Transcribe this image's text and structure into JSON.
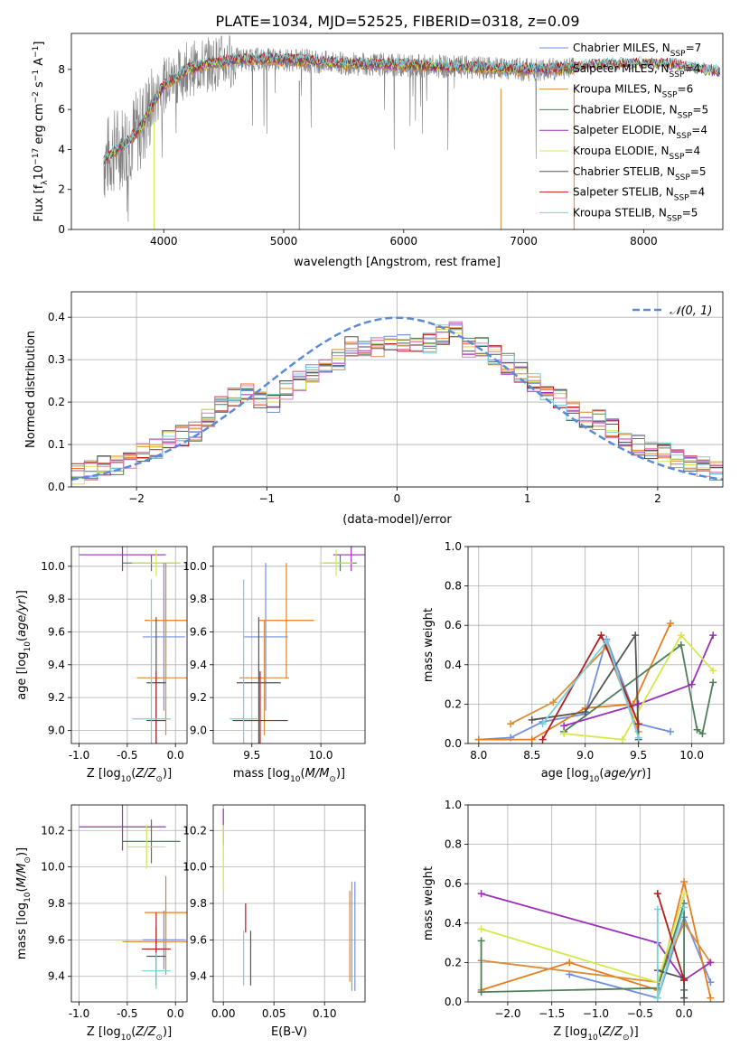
{
  "figure": {
    "title": "PLATE=1034, MJD=52525, FIBERID=0318, z=0.09"
  },
  "colors": {
    "Chabrier MILES": "#6f8fdf",
    "Salpeter MILES": "#e87d1e",
    "Kroupa MILES": "#d98e3a",
    "Chabrier ELODIE": "#4e7f5a",
    "Salpeter ELODIE": "#9b30b8",
    "Kroupa ELODIE": "#d4e84a",
    "Chabrier STELIB": "#555555",
    "Salpeter STELIB": "#b51c1c",
    "Kroupa STELIB": "#78d0dc",
    "gauss": "#5b8bd6",
    "data": "#7f7f7f",
    "pink": "#e07bb0"
  },
  "chart_data": [
    {
      "id": "spectrum",
      "type": "line",
      "xlabel": "wavelength [Angstrom, rest frame]",
      "ylabel": "Flux [f_λ 10^-17 erg cm^-2 s^-1 A^-1]",
      "xlim": [
        3230,
        8660
      ],
      "ylim": [
        0,
        9.8
      ],
      "xticks": [
        4000,
        5000,
        6000,
        7000,
        8000
      ],
      "yticks": [
        0,
        2,
        4,
        6,
        8
      ],
      "legend_position": "top-right",
      "legend": [
        "Chabrier MILES, N_SSP=7",
        "Salpeter MILES, N_SSP=4",
        "Kroupa MILES, N_SSP=6",
        "Chabrier ELODIE, N_SSP=5",
        "Salpeter ELODIE, N_SSP=4",
        "Kroupa ELODIE, N_SSP=4",
        "Chabrier STELIB, N_SSP=5",
        "Salpeter STELIB, N_SSP=4",
        "Kroupa STELIB, N_SSP=5"
      ],
      "continuum": {
        "x": [
          3500,
          3600,
          3700,
          3800,
          3900,
          4000,
          4100,
          4200,
          4400,
          4600,
          5000,
          5500,
          6000,
          6500,
          7000,
          7200,
          7400,
          7600,
          8000,
          8300,
          8600
        ],
        "y": [
          3.4,
          4.0,
          4.4,
          5.0,
          6.2,
          7.2,
          7.6,
          8.0,
          8.3,
          8.5,
          8.5,
          8.3,
          8.2,
          8.1,
          8.0,
          8.0,
          8.1,
          8.2,
          8.3,
          8.2,
          7.9
        ]
      }
    },
    {
      "id": "residuals",
      "type": "step",
      "xlabel": "(data-model)/error",
      "ylabel": "Normed distribution",
      "xlim": [
        -2.5,
        2.5
      ],
      "ylim": [
        0,
        0.46
      ],
      "xticks": [
        -2,
        -1,
        0,
        1,
        2
      ],
      "yticks": [
        0.0,
        0.1,
        0.2,
        0.3,
        0.4
      ],
      "legend": [
        "𝒩(0, 1)"
      ],
      "legend_position": "top-right",
      "bins": [
        -2.5,
        -2.4,
        -2.3,
        -2.2,
        -2.1,
        -2.0,
        -1.9,
        -1.8,
        -1.7,
        -1.6,
        -1.5,
        -1.4,
        -1.3,
        -1.2,
        -1.1,
        -1.0,
        -0.9,
        -0.8,
        -0.7,
        -0.6,
        -0.5,
        -0.4,
        -0.3,
        -0.2,
        -0.1,
        0.0,
        0.1,
        0.2,
        0.3,
        0.4,
        0.5,
        0.6,
        0.7,
        0.8,
        0.9,
        1.0,
        1.1,
        1.2,
        1.3,
        1.4,
        1.5,
        1.6,
        1.7,
        1.8,
        1.9,
        2.0,
        2.1,
        2.2,
        2.3,
        2.4
      ],
      "base_values": [
        0.03,
        0.04,
        0.05,
        0.05,
        0.06,
        0.08,
        0.09,
        0.11,
        0.12,
        0.13,
        0.16,
        0.19,
        0.21,
        0.22,
        0.21,
        0.2,
        0.23,
        0.25,
        0.27,
        0.29,
        0.3,
        0.33,
        0.32,
        0.33,
        0.34,
        0.34,
        0.33,
        0.34,
        0.36,
        0.37,
        0.33,
        0.33,
        0.31,
        0.29,
        0.27,
        0.25,
        0.23,
        0.21,
        0.18,
        0.16,
        0.16,
        0.14,
        0.12,
        0.1,
        0.09,
        0.08,
        0.07,
        0.06,
        0.05,
        0.04
      ]
    },
    {
      "id": "Z-age",
      "type": "errorbar",
      "xlabel": "Z [log10(Z/Z⊙)]",
      "ylabel": "age  [log10(age/yr)]",
      "xlim": [
        -1.08,
        0.12
      ],
      "ylim": [
        8.92,
        10.12
      ],
      "xticks": [
        -1.0,
        -0.5,
        0.0
      ],
      "yticks": [
        9.0,
        9.2,
        9.4,
        9.6,
        9.8,
        10.0
      ],
      "points": [
        {
          "model": "Salpeter ELODIE",
          "x": -0.55,
          "xerr": 0.45,
          "y": 10.07,
          "yerr": 0.1
        },
        {
          "model": "Chabrier ELODIE",
          "x": -0.25,
          "xerr": 0.3,
          "y": 10.02,
          "yerr": 0.05
        },
        {
          "model": "Kroupa ELODIE",
          "x": -0.2,
          "xerr": 0.25,
          "y": 10.02,
          "yerr": 0.08
        },
        {
          "model": "Salpeter MILES",
          "x": -0.1,
          "xerr": 0.22,
          "y": 9.67,
          "yerr": 0.35
        },
        {
          "model": "Chabrier MILES",
          "x": -0.12,
          "xerr": 0.22,
          "y": 9.57,
          "yerr": 0.45
        },
        {
          "model": "Kroupa MILES",
          "x": -0.1,
          "xerr": 0.3,
          "y": 9.32,
          "yerr": 0.35
        },
        {
          "model": "Chabrier STELIB",
          "x": -0.2,
          "xerr": 0.1,
          "y": 9.29,
          "yerr": 0.4
        },
        {
          "model": "Salpeter STELIB",
          "x": -0.2,
          "xerr": 0.1,
          "y": 9.06,
          "yerr": 0.3
        },
        {
          "model": "Kroupa STELIB",
          "x": -0.25,
          "xerr": 0.2,
          "y": 9.07,
          "yerr": 0.85
        }
      ]
    },
    {
      "id": "mass-age",
      "type": "errorbar",
      "xlabel": "mass [log10(M/M⊙)]",
      "ylabel": "",
      "xlim": [
        9.22,
        10.32
      ],
      "ylim": [
        8.92,
        10.12
      ],
      "xticks": [
        9.5,
        10.0
      ],
      "yticks": [
        9.0,
        9.2,
        9.4,
        9.6,
        9.8,
        10.0
      ],
      "points": [
        {
          "model": "Salpeter ELODIE",
          "x": 10.22,
          "xerr": 0.13,
          "y": 10.07,
          "yerr": 0.1
        },
        {
          "model": "Chabrier ELODIE",
          "x": 10.14,
          "xerr": 0.12,
          "y": 10.02,
          "yerr": 0.05
        },
        {
          "model": "Kroupa ELODIE",
          "x": 10.11,
          "xerr": 0.12,
          "y": 10.02,
          "yerr": 0.08
        },
        {
          "model": "Salpeter MILES",
          "x": 9.75,
          "xerr": 0.2,
          "y": 9.67,
          "yerr": 0.35
        },
        {
          "model": "Chabrier MILES",
          "x": 9.6,
          "xerr": 0.16,
          "y": 9.57,
          "yerr": 0.45
        },
        {
          "model": "Kroupa MILES",
          "x": 9.59,
          "xerr": 0.18,
          "y": 9.32,
          "yerr": 0.35
        },
        {
          "model": "Chabrier STELIB",
          "x": 9.55,
          "xerr": 0.16,
          "y": 9.29,
          "yerr": 0.4
        },
        {
          "model": "Salpeter STELIB",
          "x": 9.56,
          "xerr": 0.2,
          "y": 9.06,
          "yerr": 0.3
        },
        {
          "model": "Kroupa STELIB",
          "x": 9.44,
          "xerr": 0.1,
          "y": 9.07,
          "yerr": 0.85
        }
      ]
    },
    {
      "id": "age-weight",
      "type": "line",
      "xlabel": "age  [log10(age/yr)]",
      "ylabel": "mass weight",
      "xlim": [
        7.9,
        10.3
      ],
      "ylim": [
        0,
        1.0
      ],
      "xticks": [
        8.0,
        8.5,
        9.0,
        9.5,
        10.0
      ],
      "yticks": [
        0.0,
        0.2,
        0.4,
        0.6,
        0.8,
        1.0
      ],
      "series": [
        {
          "model": "Chabrier MILES",
          "x": [
            8.0,
            8.3,
            8.6,
            9.0,
            9.2,
            9.5,
            9.8
          ],
          "y": [
            0.02,
            0.03,
            0.11,
            0.15,
            0.53,
            0.1,
            0.06
          ]
        },
        {
          "model": "Salpeter MILES",
          "x": [
            8.0,
            8.5,
            9.0,
            9.45,
            9.8
          ],
          "y": [
            0.02,
            0.02,
            0.18,
            0.2,
            0.61
          ]
        },
        {
          "model": "Kroupa MILES",
          "x": [
            8.3,
            8.7,
            9.2,
            9.5
          ],
          "y": [
            0.1,
            0.21,
            0.49,
            0.06
          ]
        },
        {
          "model": "Chabrier ELODIE",
          "x": [
            8.8,
            9.9,
            10.05,
            10.1,
            10.2
          ],
          "y": [
            0.06,
            0.5,
            0.07,
            0.05,
            0.31
          ]
        },
        {
          "model": "Salpeter ELODIE",
          "x": [
            8.8,
            9.5,
            10.0,
            10.2
          ],
          "y": [
            0.09,
            0.2,
            0.3,
            0.55
          ]
        },
        {
          "model": "Kroupa ELODIE",
          "x": [
            8.8,
            9.35,
            9.9,
            10.2
          ],
          "y": [
            0.05,
            0.02,
            0.55,
            0.37
          ]
        },
        {
          "model": "Chabrier STELIB",
          "x": [
            8.5,
            9.0,
            9.47,
            9.5
          ],
          "y": [
            0.12,
            0.16,
            0.55,
            0.02
          ]
        },
        {
          "model": "Salpeter STELIB",
          "x": [
            8.6,
            9.15,
            9.5
          ],
          "y": [
            0.02,
            0.55,
            0.1
          ]
        },
        {
          "model": "Kroupa STELIB",
          "x": [
            8.6,
            9.2,
            9.5
          ],
          "y": [
            0.1,
            0.52,
            0.03
          ]
        }
      ]
    },
    {
      "id": "Z-mass",
      "type": "errorbar",
      "xlabel": "Z [log10(Z/Z⊙)]",
      "ylabel": "mass [log10(M/M⊙)]",
      "xlim": [
        -1.08,
        0.12
      ],
      "ylim": [
        9.26,
        10.34
      ],
      "xticks": [
        -1.0,
        -0.5,
        0.0
      ],
      "yticks": [
        9.4,
        9.6,
        9.8,
        10.0,
        10.2
      ],
      "points": [
        {
          "model": "Salpeter ELODIE",
          "x": -0.55,
          "xerr": 0.45,
          "y": 10.22,
          "yerr": 0.13
        },
        {
          "model": "Chabrier ELODIE",
          "x": -0.25,
          "xerr": 0.3,
          "y": 10.14,
          "yerr": 0.12
        },
        {
          "model": "Kroupa ELODIE",
          "x": -0.3,
          "xerr": 0.2,
          "y": 10.11,
          "yerr": 0.12
        },
        {
          "model": "Salpeter MILES",
          "x": -0.1,
          "xerr": 0.22,
          "y": 9.75,
          "yerr": 0.2
        },
        {
          "model": "Chabrier MILES",
          "x": -0.12,
          "xerr": 0.22,
          "y": 9.6,
          "yerr": 0.16
        },
        {
          "model": "Kroupa MILES",
          "x": -0.1,
          "xerr": 0.45,
          "y": 9.59,
          "yerr": 0.18
        },
        {
          "model": "Chabrier STELIB",
          "x": -0.2,
          "xerr": 0.1,
          "y": 9.51,
          "yerr": 0.16
        },
        {
          "model": "Salpeter STELIB",
          "x": -0.2,
          "xerr": 0.15,
          "y": 9.55,
          "yerr": 0.2
        },
        {
          "model": "Kroupa STELIB",
          "x": -0.2,
          "xerr": 0.15,
          "y": 9.43,
          "yerr": 0.1
        }
      ]
    },
    {
      "id": "EBV-mass",
      "type": "errorbar",
      "xlabel": "E(B-V)",
      "ylabel": "",
      "xlim": [
        -0.01,
        0.14
      ],
      "ylim": [
        9.26,
        10.34
      ],
      "xticks": [
        0.0,
        0.05,
        0.1
      ],
      "yticks": [
        9.4,
        9.6,
        9.8,
        10.0,
        10.2
      ],
      "points": [
        {
          "model": "Salpeter ELODIE",
          "x": 0.0,
          "xerr": 0,
          "y": 10.22,
          "yerr": 0.1
        },
        {
          "model": "Kroupa ELODIE",
          "x": 0.0,
          "xerr": 0,
          "y": 10.05,
          "yerr": 0.18
        },
        {
          "model": "Salpeter STELIB",
          "x": 0.022,
          "xerr": 0,
          "y": 9.72,
          "yerr": 0.08
        },
        {
          "model": "Kroupa STELIB",
          "x": 0.02,
          "xerr": 0,
          "y": 9.5,
          "yerr": 0.15
        },
        {
          "model": "Chabrier STELIB",
          "x": 0.027,
          "xerr": 0,
          "y": 9.5,
          "yerr": 0.15
        },
        {
          "model": "Salpeter MILES",
          "x": 0.125,
          "xerr": 0,
          "y": 9.62,
          "yerr": 0.25
        },
        {
          "model": "Kroupa MILES",
          "x": 0.127,
          "xerr": 0,
          "y": 9.62,
          "yerr": 0.3
        },
        {
          "model": "Chabrier MILES",
          "x": 0.13,
          "xerr": 0,
          "y": 9.62,
          "yerr": 0.3
        }
      ]
    },
    {
      "id": "Z-weight",
      "type": "line",
      "xlabel": "Z [log10(Z/Z⊙)]",
      "ylabel": "mass weight",
      "xlim": [
        -2.45,
        0.45
      ],
      "ylim": [
        0,
        1.0
      ],
      "xticks": [
        -2.0,
        -1.5,
        -1.0,
        -0.5,
        0.0
      ],
      "yticks": [
        0.0,
        0.2,
        0.4,
        0.6,
        0.8,
        1.0
      ],
      "series": [
        {
          "model": "Chabrier MILES",
          "x": [
            -1.3,
            -0.3,
            0.0,
            0.3
          ],
          "y": [
            0.14,
            0.02,
            0.43,
            0.1
          ]
        },
        {
          "model": "Salpeter MILES",
          "x": [
            -2.3,
            -1.3,
            -0.3,
            0.0,
            0.3
          ],
          "y": [
            0.06,
            0.2,
            0.06,
            0.61,
            0.02
          ]
        },
        {
          "model": "Kroupa MILES",
          "x": [
            -2.3,
            -0.3,
            0.0,
            0.3
          ],
          "y": [
            0.21,
            0.1,
            0.4,
            0.2
          ]
        },
        {
          "model": "Chabrier ELODIE",
          "x": [
            -2.3,
            -2.3,
            -0.3,
            0.0,
            0.0
          ],
          "y": [
            0.31,
            0.05,
            0.07,
            0.5,
            0.06
          ]
        },
        {
          "model": "Salpeter ELODIE",
          "x": [
            -2.3,
            -0.3,
            0.0,
            0.3
          ],
          "y": [
            0.55,
            0.3,
            0.11,
            0.2
          ]
        },
        {
          "model": "Kroupa ELODIE",
          "x": [
            -2.3,
            -0.3,
            0.0
          ],
          "y": [
            0.37,
            0.1,
            0.55
          ]
        },
        {
          "model": "Chabrier STELIB",
          "x": [
            -0.3,
            0.0,
            0.0
          ],
          "y": [
            0.16,
            0.12,
            0.02
          ]
        },
        {
          "model": "Salpeter STELIB",
          "x": [
            -0.3,
            0.0
          ],
          "y": [
            0.55,
            0.11
          ]
        },
        {
          "model": "Kroupa STELIB",
          "x": [
            -0.3,
            -0.3,
            0.0
          ],
          "y": [
            0.47,
            0.02,
            0.48
          ]
        }
      ]
    }
  ]
}
